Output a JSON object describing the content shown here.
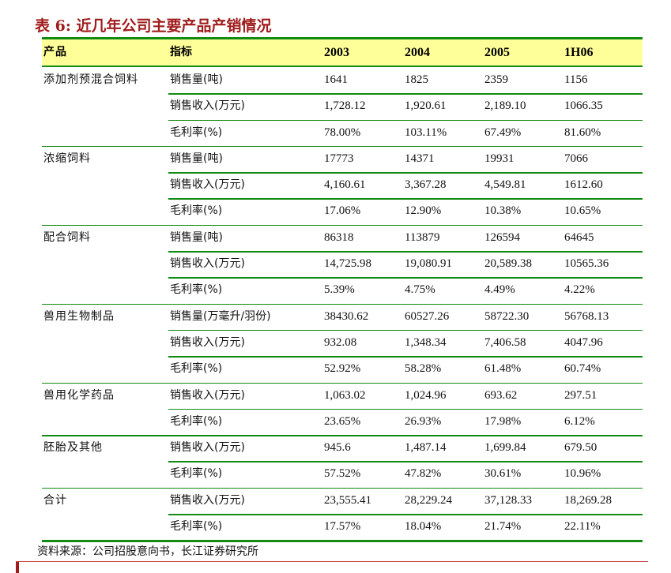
{
  "title": "表 6:  近几年公司主要产品产销情况",
  "header": [
    "产品",
    "指标",
    "2003",
    "2004",
    "2005",
    "1H06"
  ],
  "groups": [
    {
      "product": "添加剂预混合饲料",
      "rows": [
        [
          "销售量(吨)",
          "1641",
          "1825",
          "2359",
          "1156"
        ],
        [
          "销售收入(万元)",
          "1,728.12",
          "1,920.61",
          "2,189.10",
          "1066.35"
        ],
        [
          "毛利率(%)",
          "78.00%",
          "103.11%",
          "67.49%",
          "81.60%"
        ]
      ]
    },
    {
      "product": "浓缩饲料",
      "rows": [
        [
          "销售量(吨)",
          "17773",
          "14371",
          "19931",
          "7066"
        ],
        [
          "销售收入(万元)",
          "4,160.61",
          "3,367.28",
          "4,549.81",
          "1612.60"
        ],
        [
          "毛利率(%)",
          "17.06%",
          "12.90%",
          "10.38%",
          "10.65%"
        ]
      ]
    },
    {
      "product": "配合饲料",
      "rows": [
        [
          "销售量(吨)",
          "86318",
          "113879",
          "126594",
          "64645"
        ],
        [
          "销售收入(万元)",
          "14,725.98",
          "19,080.91",
          "20,589.38",
          "10565.36"
        ],
        [
          "毛利率(%)",
          "5.39%",
          "4.75%",
          "4.49%",
          "4.22%"
        ]
      ]
    },
    {
      "product": "兽用生物制品",
      "rows": [
        [
          "销售量(万毫升/羽份)",
          "38430.62",
          "60527.26",
          "58722.30",
          "56768.13"
        ],
        [
          "销售收入(万元)",
          "932.08",
          "1,348.34",
          "7,406.58",
          "4047.96"
        ],
        [
          "毛利率(%)",
          "52.92%",
          "58.28%",
          "61.48%",
          "60.74%"
        ]
      ]
    },
    {
      "product": "兽用化学药品",
      "rows": [
        [
          "销售收入(万元)",
          "1,063.02",
          "1,024.96",
          "693.62",
          "297.51"
        ],
        [
          "毛利率(%)",
          "23.65%",
          "26.93%",
          "17.98%",
          "6.12%"
        ]
      ]
    },
    {
      "product": "胚胎及其他",
      "rows": [
        [
          "销售收入(万元)",
          "945.6",
          "1,487.14",
          "1,699.84",
          "679.50"
        ],
        [
          "毛利率(%)",
          "57.52%",
          "47.82%",
          "30.61%",
          "10.96%"
        ]
      ]
    },
    {
      "product": "合计",
      "rows": [
        [
          "销售收入(万元)",
          "23,555.41",
          "28,229.24",
          "37,128.33",
          "18,269.28"
        ],
        [
          "毛利率(%)",
          "17.57%",
          "18.04%",
          "21.74%",
          "22.11%"
        ]
      ]
    }
  ],
  "source": "资料来源：公司招股意向书，长江证券研究所",
  "colors": {
    "title": "#a01c1c",
    "rule": "#138a13",
    "header_bg": "#ffff99"
  }
}
